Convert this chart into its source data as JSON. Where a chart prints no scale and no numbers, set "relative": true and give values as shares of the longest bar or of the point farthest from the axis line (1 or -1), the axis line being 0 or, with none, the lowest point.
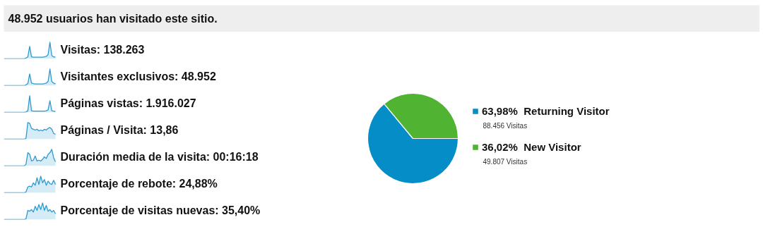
{
  "chart_data": [
    {
      "type": "other",
      "title": "48.952 usuarios han visitado este sitio."
    },
    {
      "type": "area",
      "relative": true,
      "title": "Visitas: 138.263",
      "color": "#2e9bd0",
      "values": [
        0,
        0,
        0,
        0,
        0,
        0,
        0,
        0,
        0,
        0,
        0,
        0,
        0.05,
        0.12,
        0.75,
        0.12,
        0.1,
        0.1,
        0.1,
        0.1,
        0.1,
        0.1,
        0.12,
        0.15,
        0.25,
        1.0,
        0.2,
        0.12,
        0.1
      ]
    },
    {
      "type": "area",
      "relative": true,
      "title": "Visitantes exclusivos: 48.952",
      "color": "#2e9bd0",
      "values": [
        0,
        0,
        0,
        0,
        0,
        0,
        0,
        0,
        0,
        0,
        0,
        0,
        0.05,
        0.12,
        0.7,
        0.15,
        0.12,
        0.1,
        0.1,
        0.1,
        0.1,
        0.1,
        0.12,
        0.15,
        0.25,
        1.0,
        0.25,
        0.15,
        0.1
      ]
    },
    {
      "type": "area",
      "relative": true,
      "title": "Páginas vistas: 1.916.027",
      "color": "#2e9bd0",
      "values": [
        0,
        0,
        0,
        0,
        0,
        0,
        0,
        0,
        0,
        0,
        0,
        0,
        0.03,
        0.1,
        1.0,
        0.1,
        0.08,
        0.08,
        0.08,
        0.08,
        0.08,
        0.08,
        0.08,
        0.1,
        0.15,
        0.7,
        0.1,
        0.08,
        0.06
      ]
    },
    {
      "type": "area",
      "relative": true,
      "title": "Páginas / Visita: 13,86",
      "color": "#2e9bd0",
      "values": [
        0,
        0,
        0,
        0,
        0,
        0,
        0,
        0,
        0,
        0,
        0,
        0,
        0.05,
        1.0,
        0.95,
        0.65,
        0.6,
        0.55,
        0.6,
        0.5,
        0.55,
        0.5,
        0.6,
        0.55,
        0.65,
        0.7,
        0.6,
        0.35,
        0.3
      ]
    },
    {
      "type": "area",
      "relative": true,
      "title": "Duración media de la visita: 00:16:18",
      "color": "#2e9bd0",
      "values": [
        0,
        0,
        0,
        0,
        0,
        0,
        0,
        0,
        0,
        0,
        0,
        0,
        0.1,
        0.8,
        0.7,
        0.3,
        0.35,
        0.6,
        0.3,
        0.35,
        0.3,
        0.4,
        0.55,
        0.45,
        0.7,
        0.8,
        1.0,
        0.5,
        0.25
      ]
    },
    {
      "type": "area",
      "relative": true,
      "title": "Porcentaje de rebote: 24,88%",
      "color": "#2e9bd0",
      "values": [
        0,
        0,
        0,
        0,
        0,
        0,
        0,
        0,
        0,
        0,
        0,
        0,
        0.05,
        0.35,
        0.4,
        0.35,
        0.6,
        0.45,
        0.9,
        0.5,
        1.0,
        0.6,
        0.8,
        0.45,
        0.7,
        0.55,
        0.5,
        0.75,
        0.5
      ]
    },
    {
      "type": "area",
      "relative": true,
      "title": "Porcentaje de visitas nuevas: 35,40%",
      "color": "#2e9bd0",
      "values": [
        0,
        0,
        0,
        0,
        0,
        0,
        0,
        0,
        0,
        0,
        0,
        0,
        0.05,
        0.55,
        0.5,
        0.6,
        0.45,
        0.8,
        0.55,
        0.9,
        0.6,
        1.0,
        0.55,
        0.85,
        0.5,
        0.6,
        0.45,
        0.55,
        0.35
      ]
    },
    {
      "type": "pie",
      "categories": [
        "Returning Visitor",
        "New Visitor"
      ],
      "values": [
        63.98,
        36.02
      ],
      "colors": [
        "#058dc7",
        "#50b432"
      ],
      "value_labels": [
        "63,98%",
        "36,02%"
      ],
      "annotations": [
        "88.456 Visitas",
        "49.807 Visitas"
      ],
      "legend": "right"
    }
  ]
}
